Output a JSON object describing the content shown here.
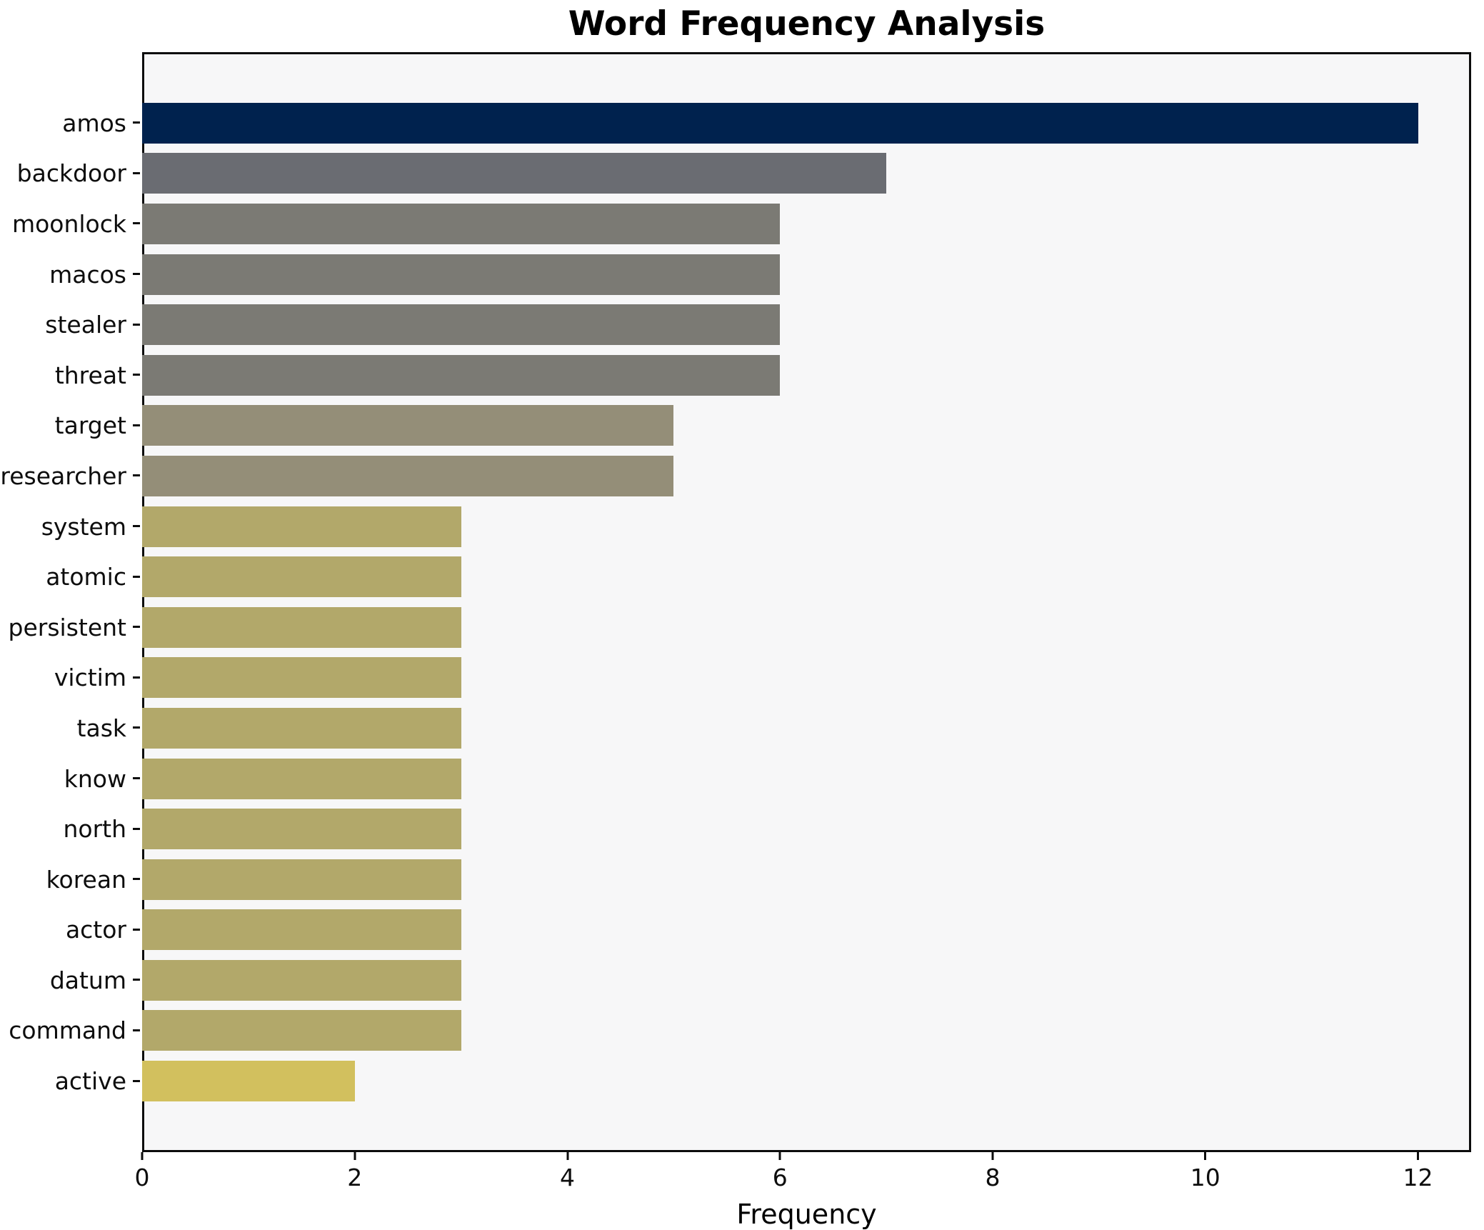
{
  "figure": {
    "title": "Word Frequency Analysis"
  },
  "chart_data": {
    "type": "bar",
    "orientation": "horizontal",
    "title": "Word Frequency Analysis",
    "xlabel": "Frequency",
    "ylabel": "",
    "xlim": [
      0,
      12.5
    ],
    "x_ticks": [
      "0",
      "2",
      "4",
      "6",
      "8",
      "10",
      "12"
    ],
    "x_tick_values": [
      0,
      2,
      4,
      6,
      8,
      10,
      12
    ],
    "grid": false,
    "legend": "none",
    "colors": {
      "figure_background": "#ffffff",
      "axes_background": "#f7f7f8",
      "spine": "#0c0c0c",
      "text": "#0d0d0d"
    },
    "categories": [
      "amos",
      "backdoor",
      "moonlock",
      "macos",
      "stealer",
      "threat",
      "target",
      "researcher",
      "system",
      "atomic",
      "persistent",
      "victim",
      "task",
      "know",
      "north",
      "korean",
      "actor",
      "datum",
      "command",
      "active"
    ],
    "values": [
      12,
      7,
      6,
      6,
      6,
      6,
      5,
      5,
      3,
      3,
      3,
      3,
      3,
      3,
      3,
      3,
      3,
      3,
      3,
      2
    ],
    "bar_colors": [
      "#00224e",
      "#6a6c72",
      "#7b7a74",
      "#7b7a74",
      "#7b7a74",
      "#7b7a74",
      "#948e78",
      "#948e78",
      "#b2a86a",
      "#b2a86a",
      "#b2a86a",
      "#b2a86a",
      "#b2a86a",
      "#b2a86a",
      "#b2a86a",
      "#b2a86a",
      "#b2a86a",
      "#b2a86a",
      "#b2a86a",
      "#d2c05e"
    ]
  }
}
